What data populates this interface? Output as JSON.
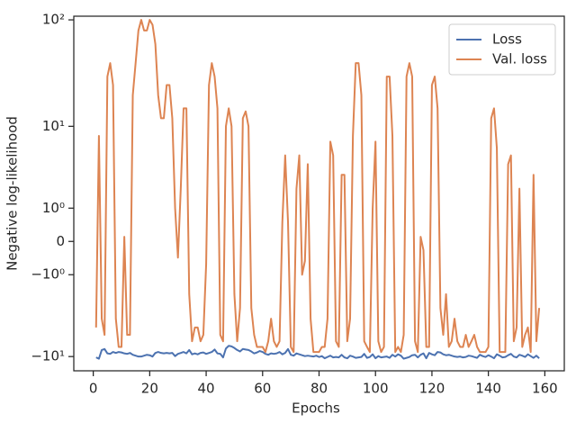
{
  "chart_data": {
    "type": "line",
    "xlabel": "Epochs",
    "ylabel": "Negative log-likelihood",
    "yscale": "symlog",
    "legend": "upper right",
    "xlim": [
      -6.9,
      166.9
    ],
    "xticks": [
      0,
      20,
      40,
      60,
      80,
      100,
      120,
      140,
      160
    ],
    "ylim": [
      -13.8,
      108
    ],
    "yticks": [
      {
        "value": -10,
        "label": "−10¹"
      },
      {
        "value": -1,
        "label": "−10⁰"
      },
      0,
      {
        "value": 1,
        "label": "10⁰"
      },
      {
        "value": 10,
        "label": "10¹"
      },
      {
        "value": 100,
        "label": "10²"
      }
    ],
    "x": [
      1,
      2,
      3,
      4,
      5,
      6,
      7,
      8,
      9,
      10,
      11,
      12,
      13,
      14,
      15,
      16,
      17,
      18,
      19,
      20,
      21,
      22,
      23,
      24,
      25,
      26,
      27,
      28,
      29,
      30,
      31,
      32,
      33,
      34,
      35,
      36,
      37,
      38,
      39,
      40,
      41,
      42,
      43,
      44,
      45,
      46,
      47,
      48,
      49,
      50,
      51,
      52,
      53,
      54,
      55,
      56,
      57,
      58,
      59,
      60,
      61,
      62,
      63,
      64,
      65,
      66,
      67,
      68,
      69,
      70,
      71,
      72,
      73,
      74,
      75,
      76,
      77,
      78,
      79,
      80,
      81,
      82,
      83,
      84,
      85,
      86,
      87,
      88,
      89,
      90,
      91,
      92,
      93,
      94,
      95,
      96,
      97,
      98,
      99,
      100,
      101,
      102,
      103,
      104,
      105,
      106,
      107,
      108,
      109,
      110,
      111,
      112,
      113,
      114,
      115,
      116,
      117,
      118,
      119,
      120,
      121,
      122,
      123,
      124,
      125,
      126,
      127,
      128,
      129,
      130,
      131,
      132,
      133,
      134,
      135,
      136,
      137,
      138,
      139,
      140,
      141,
      142,
      143,
      144,
      145,
      146,
      147,
      148,
      149,
      150,
      151,
      152,
      153,
      154,
      155,
      156,
      157,
      158
    ],
    "series": [
      {
        "name": "Loss",
        "color": "#4c72b0",
        "values": [
          -10.2,
          -10.5,
          -8.6,
          -8.4,
          -9.3,
          -9.4,
          -9,
          -9.2,
          -9,
          -9.1,
          -9.3,
          -9.4,
          -9.2,
          -9.6,
          -9.8,
          -10,
          -10,
          -9.8,
          -9.6,
          -9.7,
          -10,
          -9.2,
          -9,
          -9.2,
          -9.3,
          -9.2,
          -9.3,
          -9.2,
          -9.9,
          -9.4,
          -9.2,
          -9,
          -9.3,
          -8.6,
          -9.5,
          -9.3,
          -9.5,
          -9.2,
          -9.1,
          -9.4,
          -9.2,
          -9,
          -8.5,
          -9.3,
          -9.4,
          -10.2,
          -8.3,
          -7.8,
          -7.9,
          -8.2,
          -8.6,
          -8.9,
          -8.4,
          -8.5,
          -8.6,
          -8.9,
          -9.3,
          -9.1,
          -8.8,
          -9,
          -9.4,
          -9.6,
          -9.3,
          -9.4,
          -9.3,
          -9,
          -9.5,
          -9.2,
          -8.4,
          -9.6,
          -9.8,
          -9.3,
          -9.5,
          -9.7,
          -9.9,
          -9.8,
          -9.9,
          -10,
          -9.8,
          -10.1,
          -9.9,
          -10.4,
          -10.1,
          -9.8,
          -10.2,
          -10.1,
          -10.2,
          -9.6,
          -10.2,
          -10.4,
          -9.8,
          -10,
          -10.3,
          -10.2,
          -10.1,
          -9.4,
          -10.3,
          -10.1,
          -9.5,
          -10.4,
          -9.9,
          -10.2,
          -10.1,
          -10,
          -10.3,
          -9.6,
          -10,
          -9.5,
          -9.8,
          -10.5,
          -10.3,
          -10.1,
          -9.7,
          -9.6,
          -10.2,
          -9.6,
          -9.3,
          -10.4,
          -9.2,
          -9.5,
          -9.7,
          -9,
          -9.1,
          -9.5,
          -9.7,
          -9.6,
          -9.8,
          -10,
          -10.1,
          -10,
          -10.2,
          -10.1,
          -9.8,
          -9.9,
          -10.1,
          -10.3,
          -9.6,
          -9.9,
          -10.1,
          -9.7,
          -10,
          -10.4,
          -9.5,
          -9.8,
          -10.2,
          -10.1,
          -9.7,
          -9.4,
          -10,
          -10.2,
          -9.6,
          -9.8,
          -10.1,
          -9.5,
          -9.9,
          -10.3,
          -9.8,
          -10.4
        ]
      },
      {
        "name": "Val. loss",
        "color": "#dd8452",
        "values": [
          -5,
          8,
          -4,
          -6,
          30,
          40,
          25,
          -4,
          -8,
          -8,
          0.1,
          -6,
          -6,
          20,
          40,
          80,
          100,
          80,
          80,
          100,
          90,
          60,
          20,
          12,
          12,
          25,
          25,
          12,
          1,
          -0.4,
          2,
          15,
          15,
          -2,
          -7,
          -5,
          -5,
          -7,
          -6,
          -0.6,
          25,
          40,
          30,
          15,
          -6,
          -7,
          10,
          15,
          10,
          -2,
          -7,
          -3,
          12,
          14,
          10,
          -3,
          -6,
          -8,
          -8,
          -8,
          -9,
          -7,
          -4,
          -7,
          -8,
          -7,
          0.5,
          5,
          0.5,
          -8,
          -9,
          2,
          5,
          -1,
          -0.5,
          4,
          -4,
          -9,
          -9,
          -9,
          -8,
          -8,
          -4,
          7,
          5,
          -7,
          -8,
          3,
          3,
          -7,
          -4,
          8,
          40,
          40,
          20,
          -7,
          -8,
          -9,
          1,
          7,
          -7,
          -9,
          -8,
          30,
          30,
          8,
          -9,
          -8,
          -9,
          -6,
          30,
          40,
          30,
          -7,
          -9,
          0.1,
          -0.2,
          -8,
          -8,
          25,
          30,
          15,
          -3,
          -6,
          -2,
          -8,
          -7,
          -4,
          -7,
          -8,
          -8,
          -6,
          -8,
          -7,
          -6,
          -8,
          -9,
          -9,
          -9,
          -8,
          12,
          15,
          6,
          -9,
          -9,
          -9,
          4,
          5,
          -7,
          -5,
          2,
          -8,
          -6,
          -5,
          -9,
          3,
          -7,
          -3
        ]
      }
    ]
  }
}
